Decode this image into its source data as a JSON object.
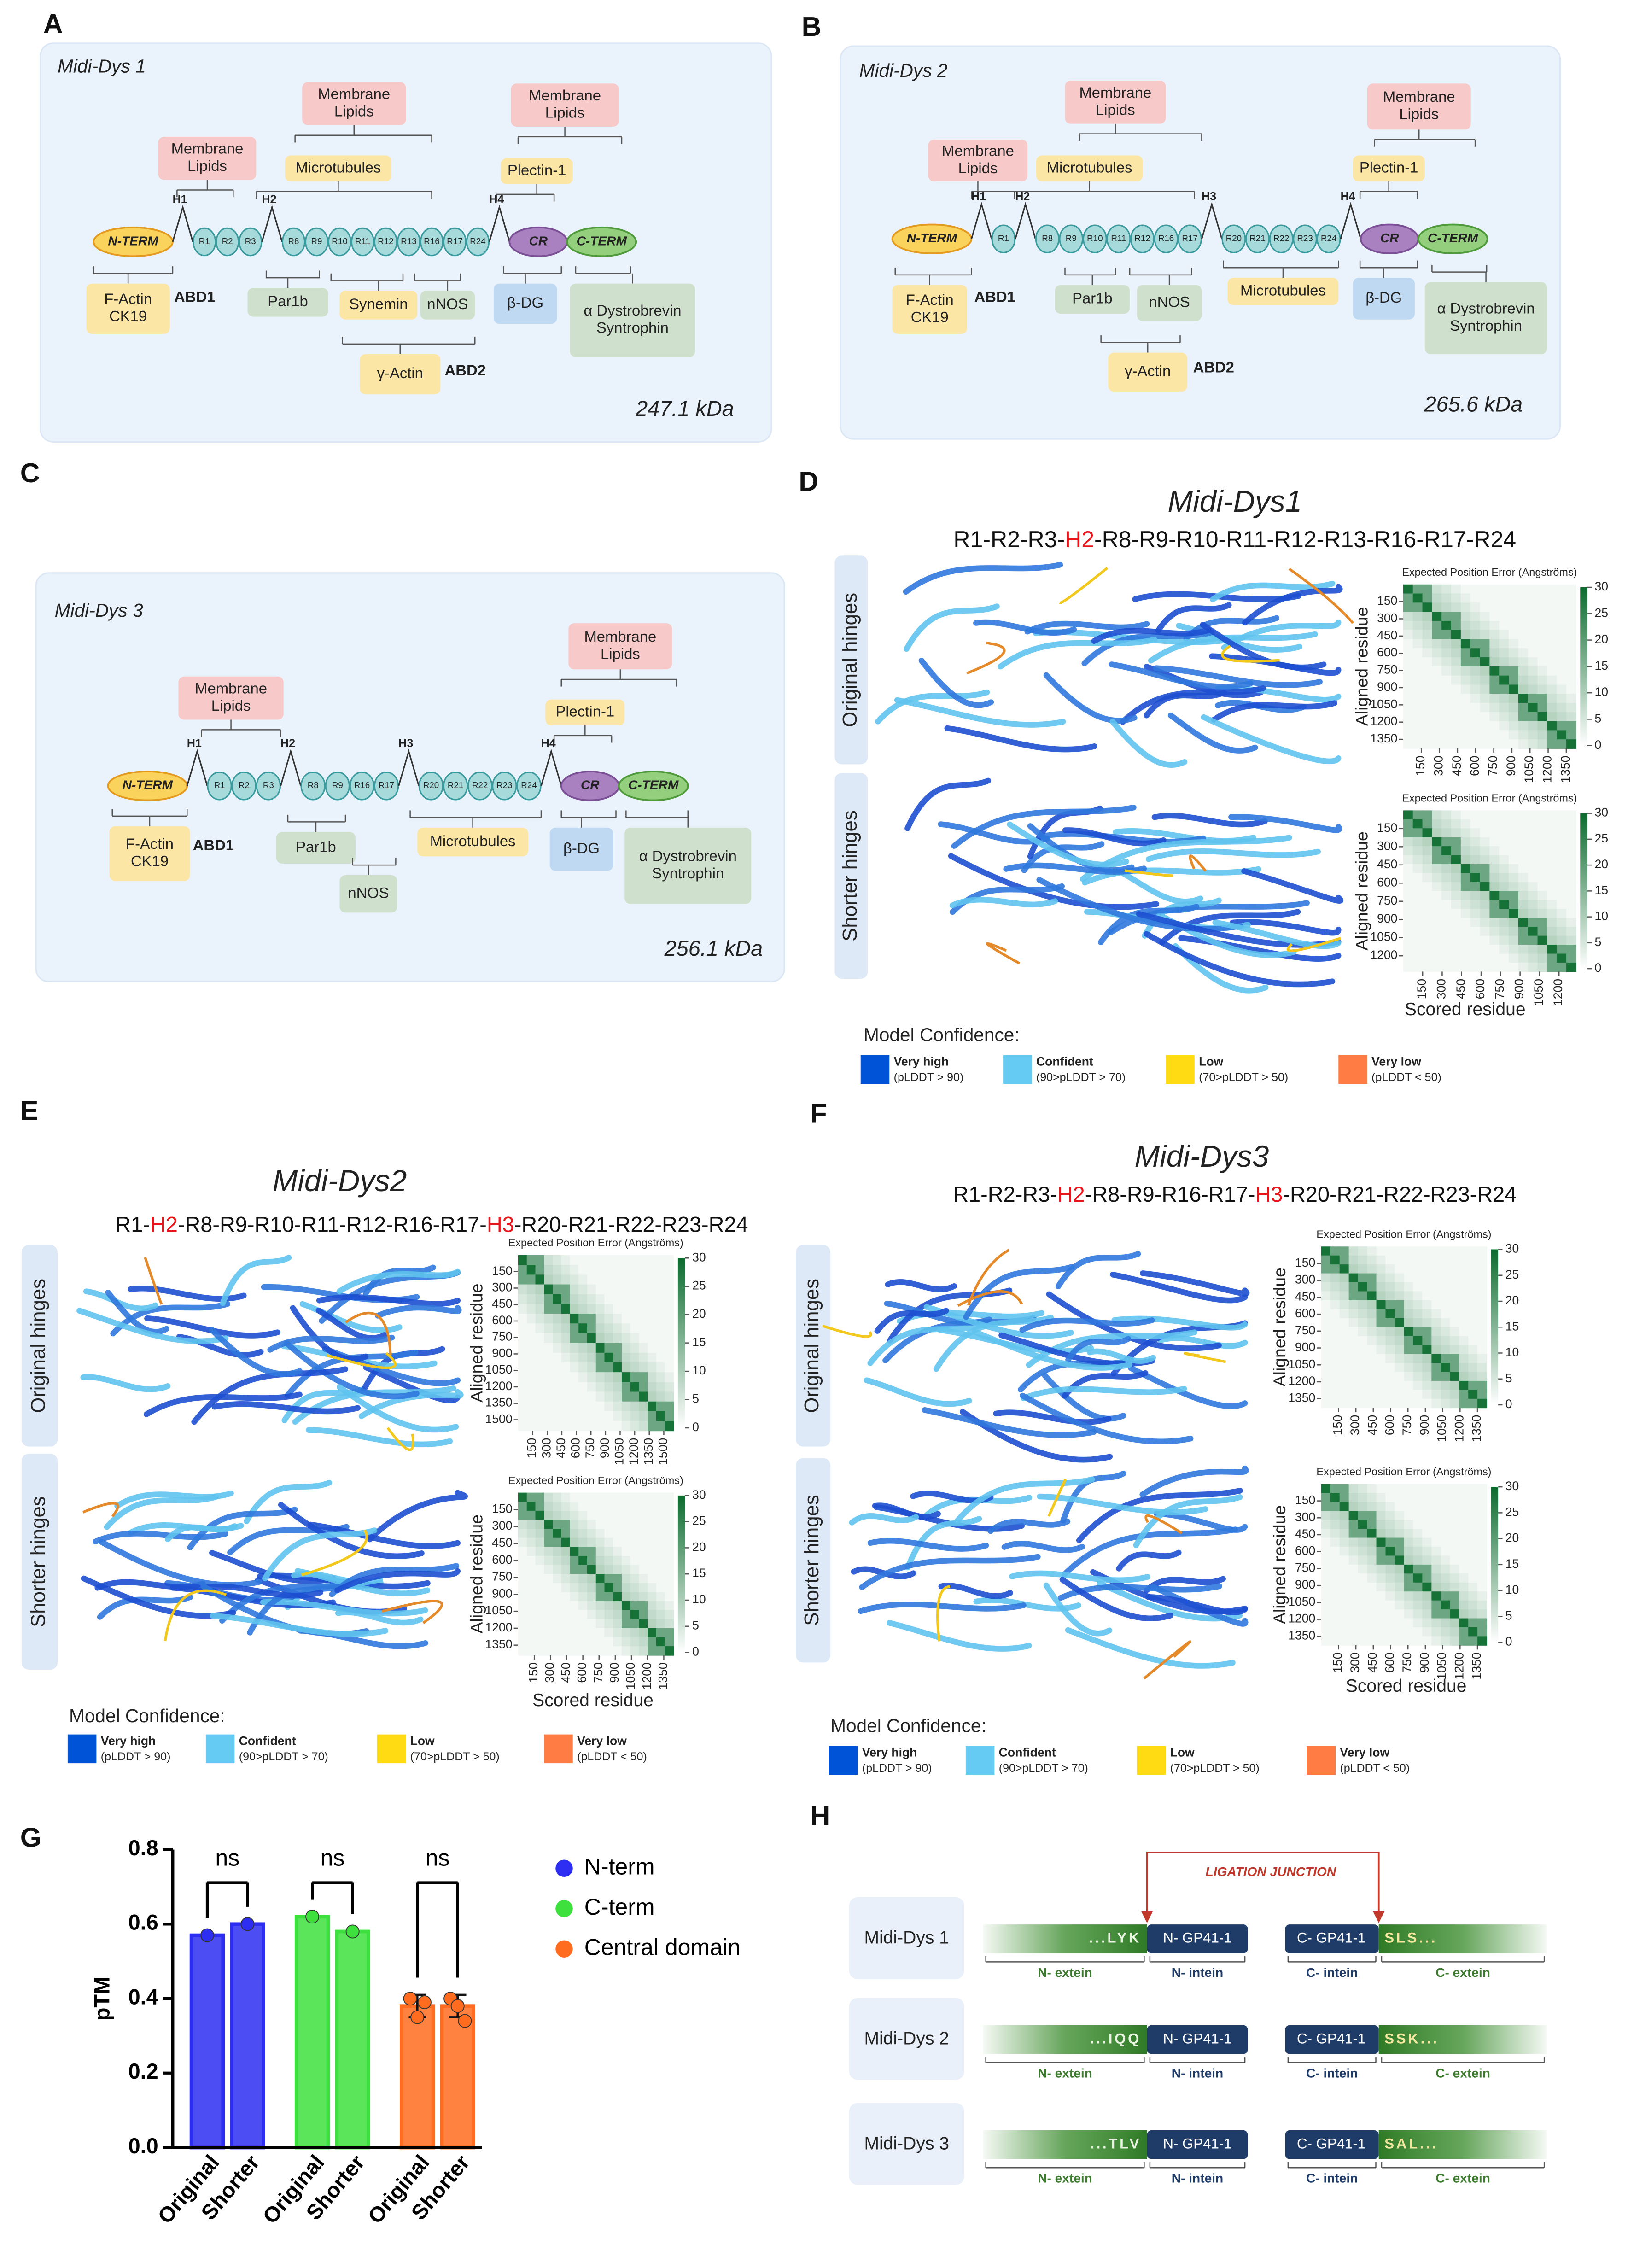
{
  "diagrams": [
    {
      "label": "A",
      "construct": "Midi-Dys 1",
      "mass": "247.1 kDa",
      "n_term": "N-TERM",
      "cr": "CR",
      "c_term": "C-TERM",
      "hinges": [
        "H1",
        "H2",
        "H4"
      ],
      "repeats": [
        "R1",
        "R2",
        "R3",
        "R8",
        "R9",
        "R10",
        "R11",
        "R12",
        "R13",
        "R16",
        "R17",
        "R24"
      ],
      "partners": [
        [
          "Membrane",
          "Lipids"
        ],
        [
          "Membrane",
          "Lipids"
        ],
        [
          "Microtubules"
        ],
        [
          "Membrane",
          "Lipids"
        ],
        [
          "Plectin-1"
        ],
        [
          "F-Actin",
          "CK19"
        ],
        [
          "Par1b"
        ],
        [
          "Synemin"
        ],
        [
          "nNOS"
        ],
        [
          "β-DG"
        ],
        [
          "α Dystrobrevin",
          "Syntrophin"
        ],
        [
          "γ-Actin"
        ]
      ],
      "abd": [
        "ABD1",
        "ABD2"
      ]
    },
    {
      "label": "B",
      "construct": "Midi-Dys 2",
      "mass": "265.6 kDa",
      "n_term": "N-TERM",
      "cr": "CR",
      "c_term": "C-TERM",
      "hinges": [
        "H1",
        "H2",
        "H3",
        "H4"
      ],
      "repeats": [
        "R1",
        "R8",
        "R9",
        "R10",
        "R11",
        "R12",
        "R16",
        "R17",
        "R20",
        "R21",
        "R22",
        "R23",
        "R24"
      ],
      "partners": [
        [
          "Membrane",
          "Lipids"
        ],
        [
          "Membrane",
          "Lipids"
        ],
        [
          "Microtubules"
        ],
        [
          "Membrane",
          "Lipids"
        ],
        [
          "Plectin-1"
        ],
        [
          "F-Actin",
          "CK19"
        ],
        [
          "Par1b"
        ],
        [
          "nNOS"
        ],
        [
          "Microtubules"
        ],
        [
          "β-DG"
        ],
        [
          "α Dystrobrevin",
          "Syntrophin"
        ],
        [
          "γ-Actin"
        ]
      ],
      "abd": [
        "ABD1",
        "ABD2"
      ]
    },
    {
      "label": "C",
      "construct": "Midi-Dys 3",
      "mass": "256.1 kDa",
      "n_term": "N-TERM",
      "cr": "CR",
      "c_term": "C-TERM",
      "hinges": [
        "H1",
        "H2",
        "H3",
        "H4"
      ],
      "repeats": [
        "R1",
        "R2",
        "R3",
        "R8",
        "R9",
        "R16",
        "R17",
        "R20",
        "R21",
        "R22",
        "R23",
        "R24"
      ],
      "partners": [
        [
          "Membrane",
          "Lipids"
        ],
        [
          "Membrane",
          "Lipids"
        ],
        [
          "Plectin-1"
        ],
        [
          "F-Actin",
          "CK19"
        ],
        [
          "Par1b"
        ],
        [
          "nNOS"
        ],
        [
          "Microtubules"
        ],
        [
          "β-DG"
        ],
        [
          "α Dystrobrevin",
          "Syntrophin"
        ]
      ],
      "abd": [
        "ABD1"
      ]
    }
  ],
  "structures": [
    {
      "label": "D",
      "title": "Midi-Dys1",
      "sequence": [
        {
          "text": "R1-R2-R3-"
        },
        {
          "text": "H2",
          "color": "#e8151b"
        },
        {
          "text": "-R8-R9-R10-R11-R12-R13-R16-R17-R24"
        }
      ],
      "rows": [
        "Original hinges",
        "Shorter hinges"
      ],
      "heatmaps": [
        {
          "title": "Expected Position Error (Angströms)",
          "ylim": [
            0,
            1430
          ],
          "yticks": [
            150,
            300,
            450,
            600,
            750,
            900,
            1050,
            1200,
            1350
          ],
          "xlim": [
            0,
            1430
          ],
          "xticks": [
            150,
            300,
            450,
            600,
            750,
            900,
            1050,
            1200,
            1350
          ],
          "clim": [
            0,
            30
          ],
          "cticks": [
            0,
            5,
            10,
            15,
            20,
            25,
            30
          ]
        },
        {
          "title": "Expected Position Error (Angströms)",
          "ylim": [
            0,
            1330
          ],
          "yticks": [
            150,
            300,
            450,
            600,
            750,
            900,
            1050,
            1200
          ],
          "xlim": [
            0,
            1330
          ],
          "xticks": [
            150,
            300,
            450,
            600,
            750,
            900,
            1050,
            1200
          ],
          "clim": [
            0,
            30
          ],
          "cticks": [
            0,
            5,
            10,
            15,
            20,
            25,
            30
          ]
        }
      ],
      "ylabel": "Aligned residue",
      "xlabel": "Scored residue",
      "legend": {
        "title": "Model Confidence:",
        "items": [
          {
            "name": "Very high",
            "note": "(pLDDT > 90)",
            "color": "#0053d6"
          },
          {
            "name": "Confident",
            "note": "(90>pLDDT > 70)",
            "color": "#65cbf3"
          },
          {
            "name": "Low",
            "note": "(70>pLDDT > 50)",
            "color": "#ffdb13"
          },
          {
            "name": "Very low",
            "note": "(pLDDT < 50)",
            "color": "#ff7d45"
          }
        ]
      }
    },
    {
      "label": "E",
      "title": "Midi-Dys2",
      "sequence": [
        {
          "text": "R1-"
        },
        {
          "text": "H2",
          "color": "#e8151b"
        },
        {
          "text": "-R8-R9-R10-R11-R12-R16-R17-"
        },
        {
          "text": "H3",
          "color": "#e8151b"
        },
        {
          "text": "-R20-R21-R22-R23-R24"
        }
      ],
      "rows": [
        "Original hinges",
        "Shorter hinges"
      ],
      "heatmaps": [
        {
          "title": "Expected Position Error (Angströms)",
          "ylim": [
            0,
            1600
          ],
          "yticks": [
            150,
            300,
            450,
            600,
            750,
            900,
            1050,
            1200,
            1350,
            1500
          ],
          "xlim": [
            0,
            1600
          ],
          "xticks": [
            150,
            300,
            450,
            600,
            750,
            900,
            1050,
            1200,
            1350,
            1500
          ],
          "clim": [
            0,
            30
          ],
          "cticks": [
            0,
            5,
            10,
            15,
            20,
            25,
            30
          ]
        },
        {
          "title": "Expected Position Error (Angströms)",
          "ylim": [
            0,
            1440
          ],
          "yticks": [
            150,
            300,
            450,
            600,
            750,
            900,
            1050,
            1200,
            1350
          ],
          "xlim": [
            0,
            1440
          ],
          "xticks": [
            150,
            300,
            450,
            600,
            750,
            900,
            1050,
            1200,
            1350
          ],
          "clim": [
            0,
            30
          ],
          "cticks": [
            0,
            5,
            10,
            15,
            20,
            25,
            30
          ]
        }
      ],
      "ylabel": "Aligned residue",
      "xlabel": "Scored residue",
      "legend": {
        "title": "Model Confidence:",
        "items": [
          {
            "name": "Very high",
            "note": "(pLDDT > 90)",
            "color": "#0053d6"
          },
          {
            "name": "Confident",
            "note": "(90>pLDDT > 70)",
            "color": "#65cbf3"
          },
          {
            "name": "Low",
            "note": "(70>pLDDT > 50)",
            "color": "#ffdb13"
          },
          {
            "name": "Very low",
            "note": "(pLDDT < 50)",
            "color": "#ff7d45"
          }
        ]
      }
    },
    {
      "label": "F",
      "title": "Midi-Dys3",
      "sequence": [
        {
          "text": "R1-R2-R3-"
        },
        {
          "text": "H2",
          "color": "#e8151b"
        },
        {
          "text": "-R8-R9-R16-R17-"
        },
        {
          "text": "H3",
          "color": "#e8151b"
        },
        {
          "text": "-R20-R21-R22-R23-R24"
        }
      ],
      "rows": [
        "Original hinges",
        "Shorter hinges"
      ],
      "heatmaps": [
        {
          "title": "Expected Position Error (Angströms)",
          "ylim": [
            0,
            1430
          ],
          "yticks": [
            150,
            300,
            450,
            600,
            750,
            900,
            1050,
            1200,
            1350
          ],
          "xlim": [
            0,
            1430
          ],
          "xticks": [
            150,
            300,
            450,
            600,
            750,
            900,
            1050,
            1200,
            1350
          ],
          "clim": [
            0,
            30
          ],
          "cticks": [
            0,
            5,
            10,
            15,
            20,
            25,
            30
          ]
        },
        {
          "title": "Expected Position Error (Angströms)",
          "ylim": [
            0,
            1430
          ],
          "yticks": [
            150,
            300,
            450,
            600,
            750,
            900,
            1050,
            1200,
            1350
          ],
          "xlim": [
            0,
            1430
          ],
          "xticks": [
            150,
            300,
            450,
            600,
            750,
            900,
            1050,
            1200,
            1350
          ],
          "clim": [
            0,
            30
          ],
          "cticks": [
            0,
            5,
            10,
            15,
            20,
            25,
            30
          ]
        }
      ],
      "ylabel": "Aligned residue",
      "xlabel": "Scored residue",
      "legend": {
        "title": "Model Confidence:",
        "items": [
          {
            "name": "Very high",
            "note": "(pLDDT > 90)",
            "color": "#0053d6"
          },
          {
            "name": "Confident",
            "note": "(90>pLDDT > 70)",
            "color": "#65cbf3"
          },
          {
            "name": "Low",
            "note": "(70>pLDDT > 50)",
            "color": "#ffdb13"
          },
          {
            "name": "Very low",
            "note": "(pLDDT < 50)",
            "color": "#ff7d45"
          }
        ]
      }
    }
  ],
  "chart_data": {
    "type": "bar",
    "label": "G",
    "ylabel": "pTM",
    "ylim": [
      0,
      0.8
    ],
    "yticks": [
      {
        "value": 0,
        "label": "0.0"
      },
      0.2,
      0.4,
      0.6,
      0.8
    ],
    "categories": [
      "Original",
      "Shorter"
    ],
    "series": [
      {
        "name": "N-term",
        "color": "#2e2ef2",
        "values": [
          0.57,
          0.6
        ],
        "points": [
          [
            0.57
          ],
          [
            0.6
          ]
        ]
      },
      {
        "name": "C-term",
        "color": "#3ee03e",
        "values": [
          0.62,
          0.58
        ],
        "points": [
          [
            0.62
          ],
          [
            0.58
          ]
        ]
      },
      {
        "name": "Central domain",
        "color": "#ff6c1f",
        "values": [
          0.38,
          0.38
        ],
        "errors": [
          0.03,
          0.03
        ],
        "points": [
          [
            0.4,
            0.35,
            0.39
          ],
          [
            0.4,
            0.38,
            0.34
          ]
        ]
      }
    ],
    "annotations": [
      "ns",
      "ns",
      "ns"
    ]
  },
  "ligation": {
    "label": "H",
    "junction": "LIGATION JUNCTION",
    "n_intein": "N- GP41-1",
    "c_intein": "C- GP41-1",
    "labels": [
      "N- extein",
      "N- intein",
      "C- intein",
      "C- extein"
    ],
    "rows": [
      {
        "name": "Midi-Dys 1",
        "n_ext": "...LYK",
        "c_ext": "SLS..."
      },
      {
        "name": "Midi-Dys 2",
        "n_ext": "...IQQ",
        "c_ext": "SSK..."
      },
      {
        "name": "Midi-Dys 3",
        "n_ext": "...TLV",
        "c_ext": "SAL..."
      }
    ]
  }
}
